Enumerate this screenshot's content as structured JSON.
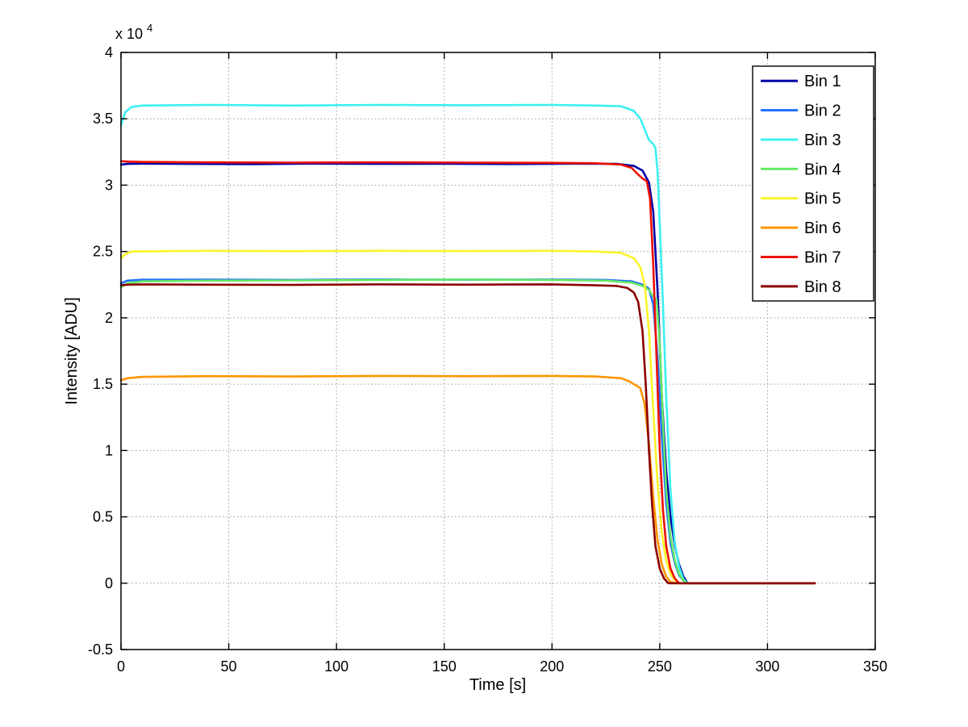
{
  "chart_data": {
    "type": "line",
    "title": "",
    "xlabel": "Time [s]",
    "ylabel": "Intensity [ADU]",
    "y_exponent_base": "x 10",
    "y_exponent_power": "4",
    "xlim": [
      0,
      350
    ],
    "ylim": [
      -5000,
      40000
    ],
    "x_ticks": [
      0,
      50,
      100,
      150,
      200,
      250,
      300,
      350
    ],
    "y_ticks": [
      -0.5,
      0,
      0.5,
      1,
      1.5,
      2,
      2.5,
      3,
      3.5,
      4
    ],
    "y_tick_scale": 10000,
    "grid": "dotted",
    "legend_position": "top-right",
    "legend_labels": [
      "Bin 1",
      "Bin 2",
      "Bin 3",
      "Bin 4",
      "Bin 5",
      "Bin 6",
      "Bin 7",
      "Bin 8"
    ],
    "series": [
      {
        "name": "Bin 1",
        "color": "#0000A8",
        "points": [
          [
            0,
            31550
          ],
          [
            3,
            31600
          ],
          [
            10,
            31620
          ],
          [
            30,
            31600
          ],
          [
            60,
            31580
          ],
          [
            90,
            31620
          ],
          [
            120,
            31600
          ],
          [
            150,
            31610
          ],
          [
            180,
            31590
          ],
          [
            210,
            31620
          ],
          [
            230,
            31600
          ],
          [
            238,
            31450
          ],
          [
            242,
            31100
          ],
          [
            245,
            30200
          ],
          [
            247,
            28000
          ],
          [
            249,
            22000
          ],
          [
            251,
            14000
          ],
          [
            253,
            8500
          ],
          [
            255,
            5000
          ],
          [
            257,
            2800
          ],
          [
            259,
            1400
          ],
          [
            261,
            500
          ],
          [
            263,
            0
          ],
          [
            322,
            0
          ]
        ]
      },
      {
        "name": "Bin 2",
        "color": "#1E6FFF",
        "points": [
          [
            0,
            22600
          ],
          [
            3,
            22800
          ],
          [
            10,
            22870
          ],
          [
            40,
            22880
          ],
          [
            80,
            22860
          ],
          [
            120,
            22890
          ],
          [
            160,
            22870
          ],
          [
            200,
            22880
          ],
          [
            225,
            22860
          ],
          [
            237,
            22750
          ],
          [
            242,
            22500
          ],
          [
            245,
            22200
          ],
          [
            247,
            21000
          ],
          [
            249,
            17000
          ],
          [
            251,
            11000
          ],
          [
            253,
            6000
          ],
          [
            255,
            3000
          ],
          [
            257,
            1500
          ],
          [
            259,
            600
          ],
          [
            262,
            0
          ],
          [
            322,
            0
          ]
        ]
      },
      {
        "name": "Bin 3",
        "color": "#3DF0F0",
        "points": [
          [
            0,
            34500
          ],
          [
            2,
            35500
          ],
          [
            5,
            35900
          ],
          [
            10,
            36000
          ],
          [
            40,
            36050
          ],
          [
            80,
            36000
          ],
          [
            120,
            36050
          ],
          [
            160,
            36020
          ],
          [
            200,
            36050
          ],
          [
            220,
            36000
          ],
          [
            232,
            35950
          ],
          [
            238,
            35600
          ],
          [
            241,
            35000
          ],
          [
            243,
            34200
          ],
          [
            245,
            33400
          ],
          [
            247,
            33100
          ],
          [
            248,
            32800
          ],
          [
            249,
            31000
          ],
          [
            250,
            27000
          ],
          [
            251.5,
            21000
          ],
          [
            253,
            14000
          ],
          [
            255,
            7000
          ],
          [
            257,
            3000
          ],
          [
            259,
            1200
          ],
          [
            261,
            300
          ],
          [
            263,
            0
          ],
          [
            322,
            0
          ]
        ]
      },
      {
        "name": "Bin 4",
        "color": "#66E866",
        "points": [
          [
            0,
            22300
          ],
          [
            3,
            22600
          ],
          [
            10,
            22750
          ],
          [
            40,
            22800
          ],
          [
            80,
            22820
          ],
          [
            120,
            22850
          ],
          [
            160,
            22880
          ],
          [
            200,
            22850
          ],
          [
            225,
            22800
          ],
          [
            237,
            22650
          ],
          [
            242,
            22400
          ],
          [
            245,
            22100
          ],
          [
            247,
            21600
          ],
          [
            248.5,
            21400
          ],
          [
            250,
            18000
          ],
          [
            251.5,
            12000
          ],
          [
            253,
            7000
          ],
          [
            255,
            3500
          ],
          [
            257,
            1700
          ],
          [
            259,
            700
          ],
          [
            261,
            200
          ],
          [
            263,
            0
          ],
          [
            322,
            0
          ]
        ]
      },
      {
        "name": "Bin 5",
        "color": "#FAF428",
        "points": [
          [
            0,
            24500
          ],
          [
            2,
            24800
          ],
          [
            5,
            25000
          ],
          [
            40,
            25050
          ],
          [
            80,
            25020
          ],
          [
            120,
            25050
          ],
          [
            160,
            25030
          ],
          [
            200,
            25050
          ],
          [
            220,
            25000
          ],
          [
            232,
            24900
          ],
          [
            238,
            24500
          ],
          [
            241,
            23800
          ],
          [
            243,
            22500
          ],
          [
            245,
            19000
          ],
          [
            247,
            13000
          ],
          [
            249,
            7500
          ],
          [
            251,
            3800
          ],
          [
            253,
            1700
          ],
          [
            255,
            700
          ],
          [
            257,
            200
          ],
          [
            259,
            0
          ],
          [
            322,
            0
          ]
        ]
      },
      {
        "name": "Bin 6",
        "color": "#FF9500",
        "points": [
          [
            0,
            15300
          ],
          [
            3,
            15450
          ],
          [
            10,
            15550
          ],
          [
            40,
            15600
          ],
          [
            80,
            15580
          ],
          [
            120,
            15620
          ],
          [
            160,
            15600
          ],
          [
            200,
            15620
          ],
          [
            220,
            15580
          ],
          [
            232,
            15450
          ],
          [
            236,
            15200
          ],
          [
            239,
            14900
          ],
          [
            241,
            14700
          ],
          [
            243,
            13500
          ],
          [
            245,
            10500
          ],
          [
            247,
            6500
          ],
          [
            249,
            3200
          ],
          [
            251,
            1400
          ],
          [
            253,
            500
          ],
          [
            255,
            100
          ],
          [
            257,
            0
          ],
          [
            322,
            0
          ]
        ]
      },
      {
        "name": "Bin 7",
        "color": "#EE1100",
        "points": [
          [
            0,
            31800
          ],
          [
            3,
            31780
          ],
          [
            10,
            31750
          ],
          [
            40,
            31720
          ],
          [
            80,
            31700
          ],
          [
            120,
            31720
          ],
          [
            160,
            31700
          ],
          [
            200,
            31680
          ],
          [
            220,
            31650
          ],
          [
            232,
            31550
          ],
          [
            237,
            31300
          ],
          [
            240,
            30800
          ],
          [
            242,
            30500
          ],
          [
            244,
            30300
          ],
          [
            245.5,
            29000
          ],
          [
            247,
            24000
          ],
          [
            248.5,
            17000
          ],
          [
            250,
            10000
          ],
          [
            251.5,
            5500
          ],
          [
            253,
            2800
          ],
          [
            255,
            1100
          ],
          [
            257,
            350
          ],
          [
            259,
            0
          ],
          [
            322,
            0
          ]
        ]
      },
      {
        "name": "Bin 8",
        "color": "#8B0000",
        "points": [
          [
            0,
            22450
          ],
          [
            3,
            22500
          ],
          [
            10,
            22520
          ],
          [
            40,
            22500
          ],
          [
            80,
            22480
          ],
          [
            120,
            22520
          ],
          [
            160,
            22500
          ],
          [
            200,
            22520
          ],
          [
            220,
            22450
          ],
          [
            230,
            22400
          ],
          [
            235,
            22250
          ],
          [
            238,
            21900
          ],
          [
            240,
            21200
          ],
          [
            242,
            19000
          ],
          [
            243.5,
            15000
          ],
          [
            245,
            10000
          ],
          [
            246.5,
            5800
          ],
          [
            248,
            2800
          ],
          [
            250,
            1100
          ],
          [
            252,
            350
          ],
          [
            254,
            0
          ],
          [
            322,
            0
          ]
        ]
      }
    ]
  }
}
